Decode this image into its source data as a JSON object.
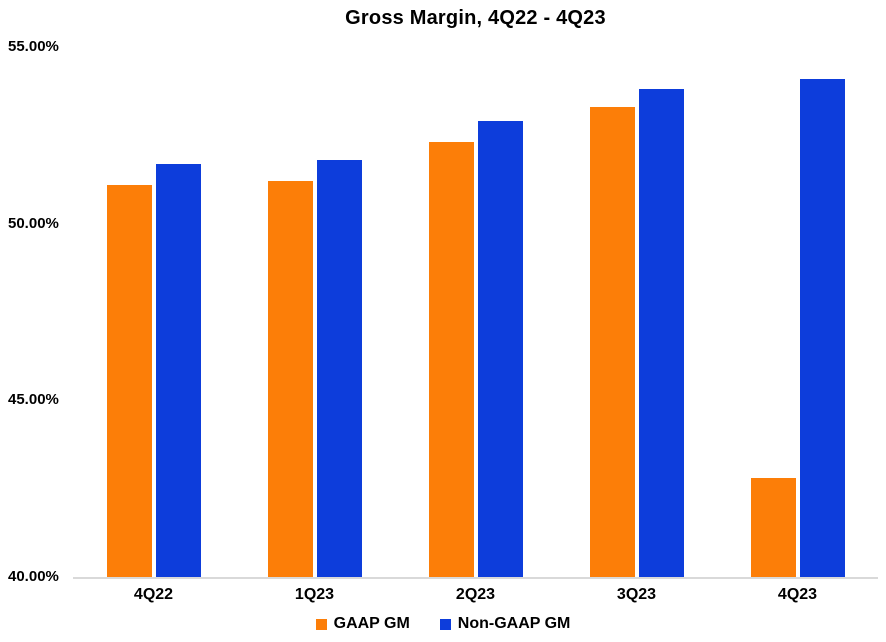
{
  "chart_data": {
    "type": "bar",
    "title": "Gross Margin, 4Q22 - 4Q23",
    "categories": [
      "4Q22",
      "1Q23",
      "2Q23",
      "3Q23",
      "4Q23"
    ],
    "series": [
      {
        "name": "GAAP GM",
        "color": "#FC7E08",
        "values": [
          51.1,
          51.2,
          52.3,
          53.3,
          42.8
        ]
      },
      {
        "name": "Non-GAAP GM",
        "color": "#0D3DDB",
        "values": [
          51.7,
          51.8,
          52.9,
          53.8,
          54.1
        ]
      }
    ],
    "ylim": [
      40,
      55
    ],
    "yticks": [
      {
        "label": "55.00%",
        "value": 55
      },
      {
        "label": "50.00%",
        "value": 50
      },
      {
        "label": "45.00%",
        "value": 45
      },
      {
        "label": "40.00%",
        "value": 40
      }
    ],
    "grid": false,
    "legend_position": "bottom",
    "axis_line_color": "#d9d9d9",
    "text_color": "#000000",
    "background_color": "#ffffff"
  }
}
